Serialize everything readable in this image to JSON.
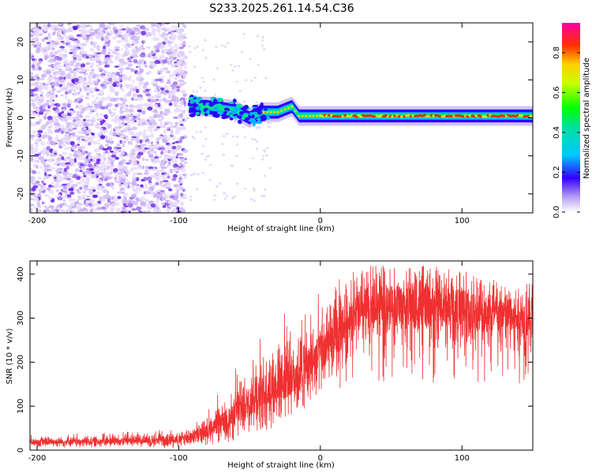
{
  "title": "S233.2025.261.14.54.C36",
  "chart_data": [
    {
      "type": "heatmap",
      "name": "spectrogram",
      "xlabel": "Height of straight line (km)",
      "ylabel": "Frequency (Hz)",
      "xlim": [
        -205,
        150
      ],
      "ylim": [
        -25,
        25
      ],
      "xticks": [
        -200,
        -100,
        0,
        100
      ],
      "yticks": [
        -20,
        -10,
        0,
        10,
        20
      ],
      "colorbar": {
        "label": "Normalized spectral amplitude",
        "range": [
          0,
          0.95
        ],
        "ticks": [
          0.0,
          0.2,
          0.4,
          0.6,
          0.8
        ],
        "tick_labels": [
          "0.0",
          "0.2",
          "0.4",
          "0.6",
          "0.8"
        ]
      },
      "regions": [
        {
          "description": "broadband noise",
          "x_range": [
            -205,
            -95
          ],
          "freq_range": [
            -25,
            25
          ],
          "amplitude": [
            0.0,
            0.15
          ]
        },
        {
          "description": "transition",
          "x_range": [
            -95,
            0
          ],
          "freq_range": [
            -2,
            5
          ],
          "amplitude": [
            0.1,
            0.5
          ]
        },
        {
          "description": "carrier line",
          "x_range": [
            0,
            150
          ],
          "freq_center": 0.5,
          "amplitude": [
            0.6,
            0.95
          ]
        }
      ],
      "carrier_trace": {
        "x": [
          -93,
          -80,
          -70,
          -60,
          -50,
          -45,
          -40,
          -30,
          -20,
          -15,
          -10,
          0,
          50,
          100,
          150
        ],
        "freq": [
          3,
          3,
          2.5,
          2,
          0,
          1,
          1.5,
          1.5,
          3,
          0.5,
          0.5,
          0.5,
          0.5,
          0.5,
          0.5
        ]
      }
    },
    {
      "type": "line",
      "name": "snr",
      "xlabel": "Height of straight line (km)",
      "ylabel": "SNR (10 * v/v)",
      "xlim": [
        -205,
        150
      ],
      "ylim": [
        0,
        430
      ],
      "xticks": [
        -200,
        -100,
        0,
        100
      ],
      "yticks": [
        0,
        100,
        200,
        300,
        400
      ],
      "color": "#f03030",
      "envelope": {
        "x": [
          -205,
          -150,
          -100,
          -90,
          -80,
          -70,
          -60,
          -50,
          -40,
          -30,
          -20,
          -10,
          0,
          10,
          20,
          30,
          40,
          60,
          80,
          100,
          120,
          140,
          150
        ],
        "mean": [
          18,
          20,
          25,
          32,
          45,
          60,
          80,
          110,
          130,
          150,
          165,
          185,
          220,
          250,
          300,
          320,
          330,
          330,
          325,
          320,
          310,
          300,
          300
        ],
        "high": [
          35,
          40,
          50,
          60,
          90,
          140,
          190,
          230,
          270,
          300,
          330,
          350,
          360,
          380,
          410,
          420,
          420,
          420,
          420,
          420,
          410,
          400,
          390
        ],
        "low": [
          5,
          5,
          5,
          8,
          10,
          15,
          20,
          30,
          30,
          60,
          80,
          90,
          100,
          110,
          150,
          150,
          150,
          150,
          150,
          160,
          150,
          150,
          150
        ]
      }
    }
  ]
}
